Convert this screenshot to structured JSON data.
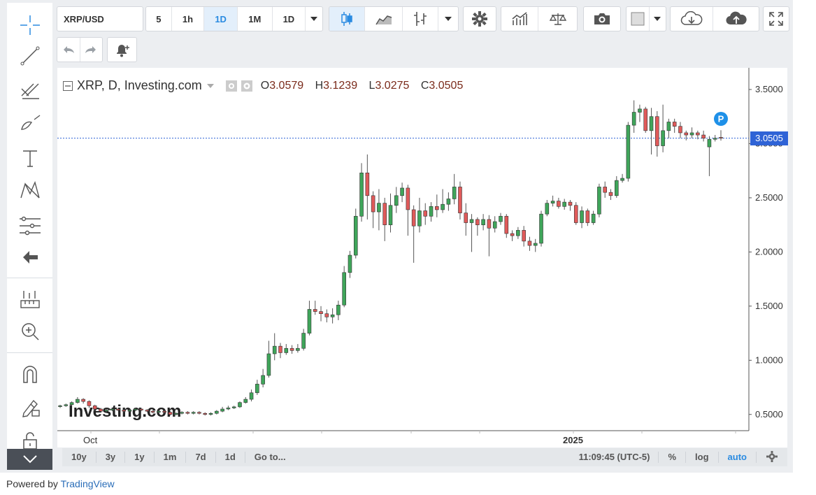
{
  "toolbar": {
    "symbol": "XRP/USD",
    "intervals": [
      "5",
      "1h",
      "1D",
      "1M",
      "1D"
    ],
    "active_interval": "1D"
  },
  "legend": {
    "title": "XRP, D, Investing.com",
    "open_label": "O",
    "open": "3.0579",
    "high_label": "H",
    "high": "3.1239",
    "low_label": "L",
    "low": "3.0275",
    "close_label": "C",
    "close": "3.0505"
  },
  "price_axis": {
    "labels": [
      "3.5000",
      "3.0000",
      "2.5000",
      "2.0000",
      "1.5000",
      "1.0000",
      "0.5000"
    ],
    "current": "3.0505"
  },
  "time_axis": {
    "labels": [
      "Oct",
      "2025"
    ]
  },
  "watermark": "Investing.com",
  "marker": "P",
  "ranges": [
    "10y",
    "3y",
    "1y",
    "1m",
    "7d",
    "1d",
    "Go to..."
  ],
  "status": {
    "time": "11:09:45 (UTC-5)",
    "pct": "%",
    "log": "log",
    "auto": "auto"
  },
  "footer": {
    "prefix": "Powered by",
    "link": "TradingView"
  },
  "colors": {
    "up": "#3fa55a",
    "down": "#e05a5a",
    "accent": "#2a8be1",
    "price_line": "#2f63d6"
  },
  "chart_data": {
    "type": "candlestick",
    "ylim": [
      0.35,
      3.7
    ],
    "grid": false,
    "candles": [
      [
        0.58,
        0.58,
        0.56,
        0.59
      ],
      [
        0.58,
        0.59,
        0.57,
        0.6
      ],
      [
        0.59,
        0.61,
        0.58,
        0.62
      ],
      [
        0.61,
        0.64,
        0.6,
        0.66
      ],
      [
        0.64,
        0.62,
        0.6,
        0.65
      ],
      [
        0.62,
        0.58,
        0.56,
        0.63
      ],
      [
        0.58,
        0.55,
        0.53,
        0.59
      ],
      [
        0.55,
        0.53,
        0.52,
        0.56
      ],
      [
        0.53,
        0.54,
        0.52,
        0.55
      ],
      [
        0.54,
        0.55,
        0.53,
        0.56
      ],
      [
        0.55,
        0.54,
        0.53,
        0.56
      ],
      [
        0.54,
        0.53,
        0.52,
        0.55
      ],
      [
        0.53,
        0.54,
        0.52,
        0.55
      ],
      [
        0.54,
        0.55,
        0.53,
        0.56
      ],
      [
        0.55,
        0.54,
        0.53,
        0.56
      ],
      [
        0.54,
        0.53,
        0.52,
        0.55
      ],
      [
        0.53,
        0.52,
        0.51,
        0.54
      ],
      [
        0.52,
        0.53,
        0.51,
        0.54
      ],
      [
        0.53,
        0.52,
        0.51,
        0.54
      ],
      [
        0.52,
        0.5,
        0.49,
        0.53
      ],
      [
        0.5,
        0.51,
        0.49,
        0.52
      ],
      [
        0.51,
        0.52,
        0.5,
        0.53
      ],
      [
        0.52,
        0.51,
        0.5,
        0.53
      ],
      [
        0.51,
        0.52,
        0.5,
        0.53
      ],
      [
        0.52,
        0.51,
        0.5,
        0.53
      ],
      [
        0.51,
        0.5,
        0.49,
        0.52
      ],
      [
        0.5,
        0.51,
        0.49,
        0.52
      ],
      [
        0.51,
        0.53,
        0.5,
        0.54
      ],
      [
        0.53,
        0.55,
        0.52,
        0.57
      ],
      [
        0.55,
        0.56,
        0.54,
        0.58
      ],
      [
        0.56,
        0.57,
        0.55,
        0.58
      ],
      [
        0.57,
        0.61,
        0.56,
        0.62
      ],
      [
        0.61,
        0.64,
        0.6,
        0.66
      ],
      [
        0.64,
        0.7,
        0.62,
        0.73
      ],
      [
        0.7,
        0.78,
        0.68,
        0.82
      ],
      [
        0.78,
        0.86,
        0.75,
        0.92
      ],
      [
        0.86,
        1.06,
        0.84,
        1.18
      ],
      [
        1.06,
        1.13,
        1.0,
        1.25
      ],
      [
        1.13,
        1.07,
        1.02,
        1.16
      ],
      [
        1.07,
        1.11,
        1.05,
        1.15
      ],
      [
        1.11,
        1.09,
        1.06,
        1.14
      ],
      [
        1.09,
        1.11,
        1.07,
        1.15
      ],
      [
        1.11,
        1.25,
        1.09,
        1.29
      ],
      [
        1.25,
        1.47,
        1.23,
        1.55
      ],
      [
        1.47,
        1.45,
        1.42,
        1.55
      ],
      [
        1.45,
        1.43,
        1.36,
        1.5
      ],
      [
        1.43,
        1.4,
        1.35,
        1.47
      ],
      [
        1.4,
        1.42,
        1.34,
        1.48
      ],
      [
        1.42,
        1.51,
        1.37,
        1.55
      ],
      [
        1.51,
        1.81,
        1.49,
        1.87
      ],
      [
        1.81,
        1.97,
        1.76,
        2.01
      ],
      [
        1.97,
        2.33,
        1.94,
        2.4
      ],
      [
        2.33,
        2.73,
        2.28,
        2.82
      ],
      [
        2.73,
        2.52,
        2.3,
        2.9
      ],
      [
        2.52,
        2.37,
        2.22,
        2.56
      ],
      [
        2.37,
        2.45,
        2.2,
        2.58
      ],
      [
        2.45,
        2.25,
        2.1,
        2.5
      ],
      [
        2.25,
        2.43,
        2.18,
        2.54
      ],
      [
        2.43,
        2.52,
        2.36,
        2.6
      ],
      [
        2.52,
        2.59,
        2.46,
        2.64
      ],
      [
        2.59,
        2.39,
        2.15,
        2.62
      ],
      [
        2.39,
        2.24,
        1.9,
        2.43
      ],
      [
        2.24,
        2.38,
        2.18,
        2.5
      ],
      [
        2.38,
        2.33,
        2.25,
        2.45
      ],
      [
        2.33,
        2.42,
        2.28,
        2.46
      ],
      [
        2.42,
        2.39,
        2.32,
        2.53
      ],
      [
        2.39,
        2.44,
        2.36,
        2.58
      ],
      [
        2.44,
        2.49,
        2.38,
        2.55
      ],
      [
        2.49,
        2.6,
        2.44,
        2.72
      ],
      [
        2.6,
        2.36,
        2.3,
        2.65
      ],
      [
        2.36,
        2.27,
        2.15,
        2.45
      ],
      [
        2.27,
        2.3,
        2.0,
        2.35
      ],
      [
        2.3,
        2.25,
        2.15,
        2.32
      ],
      [
        2.25,
        2.3,
        2.2,
        2.35
      ],
      [
        2.3,
        2.22,
        1.96,
        2.34
      ],
      [
        2.22,
        2.28,
        2.18,
        2.33
      ],
      [
        2.28,
        2.33,
        2.25,
        2.36
      ],
      [
        2.33,
        2.17,
        2.13,
        2.35
      ],
      [
        2.17,
        2.15,
        2.1,
        2.2
      ],
      [
        2.15,
        2.2,
        2.12,
        2.23
      ],
      [
        2.2,
        2.1,
        2.05,
        2.24
      ],
      [
        2.1,
        2.06,
        2.01,
        2.14
      ],
      [
        2.06,
        2.08,
        2.0,
        2.12
      ],
      [
        2.08,
        2.35,
        2.05,
        2.38
      ],
      [
        2.35,
        2.45,
        2.33,
        2.48
      ],
      [
        2.45,
        2.47,
        2.42,
        2.52
      ],
      [
        2.47,
        2.42,
        2.4,
        2.5
      ],
      [
        2.42,
        2.46,
        2.39,
        2.49
      ],
      [
        2.46,
        2.43,
        2.38,
        2.48
      ],
      [
        2.43,
        2.27,
        2.25,
        2.46
      ],
      [
        2.27,
        2.38,
        2.22,
        2.42
      ],
      [
        2.38,
        2.27,
        2.24,
        2.4
      ],
      [
        2.27,
        2.35,
        2.25,
        2.38
      ],
      [
        2.35,
        2.6,
        2.32,
        2.63
      ],
      [
        2.6,
        2.55,
        2.5,
        2.65
      ],
      [
        2.55,
        2.52,
        2.48,
        2.58
      ],
      [
        2.52,
        2.66,
        2.5,
        2.7
      ],
      [
        2.66,
        2.68,
        2.64,
        2.72
      ],
      [
        2.68,
        3.17,
        2.65,
        3.2
      ],
      [
        3.17,
        3.29,
        3.1,
        3.4
      ],
      [
        3.29,
        3.32,
        3.2,
        3.36
      ],
      [
        3.32,
        3.12,
        3.1,
        3.34
      ],
      [
        3.12,
        3.25,
        2.9,
        3.33
      ],
      [
        3.25,
        2.98,
        2.88,
        3.3
      ],
      [
        2.98,
        3.12,
        2.92,
        3.36
      ],
      [
        3.12,
        3.2,
        3.05,
        3.23
      ],
      [
        3.2,
        3.16,
        3.1,
        3.23
      ],
      [
        3.16,
        3.1,
        3.05,
        3.2
      ],
      [
        3.1,
        3.08,
        3.03,
        3.12
      ],
      [
        3.08,
        3.1,
        3.05,
        3.15
      ],
      [
        3.1,
        3.08,
        3.04,
        3.12
      ],
      [
        3.08,
        3.05,
        3.02,
        3.12
      ],
      [
        2.97,
        3.04,
        2.7,
        3.07
      ],
      [
        3.04,
        3.05,
        3.02,
        3.08
      ],
      [
        3.0579,
        3.0505,
        3.0275,
        3.1239
      ]
    ]
  }
}
